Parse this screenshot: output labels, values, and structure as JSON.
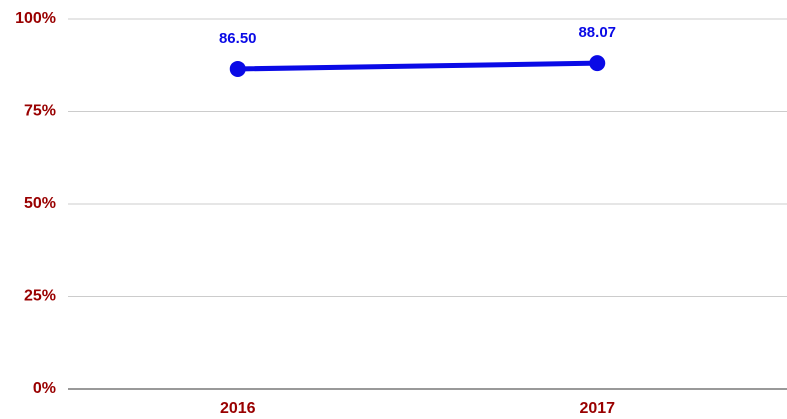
{
  "chart_data": {
    "type": "line",
    "categories": [
      "2016",
      "2017"
    ],
    "values": [
      86.5,
      88.07
    ],
    "value_labels": [
      "86.50",
      "88.07"
    ],
    "color": "#0a0ae6",
    "ylim": [
      0,
      100
    ],
    "yticks": [
      {
        "value": 0,
        "label": "0%"
      },
      {
        "value": 25,
        "label": "25%"
      },
      {
        "value": 50,
        "label": "50%"
      },
      {
        "value": 75,
        "label": "75%"
      },
      {
        "value": 100,
        "label": "100%"
      }
    ],
    "grid": true
  }
}
